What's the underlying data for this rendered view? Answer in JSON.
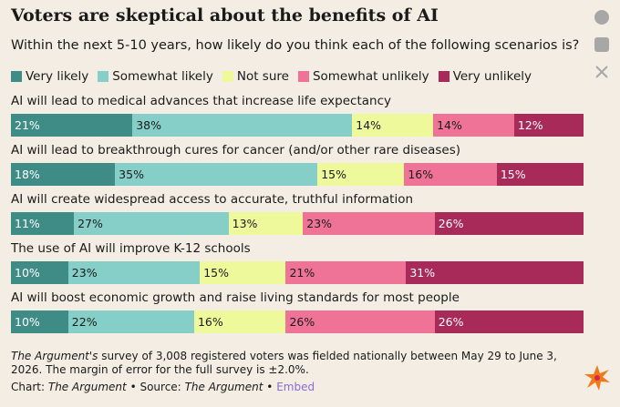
{
  "chart_data": {
    "type": "stacked-bar",
    "title": "Voters are skeptical about the benefits of AI",
    "subtitle": "Within the next 5-10 years, how likely do you think each of the following scenarios is?",
    "categories": [
      "AI will lead to medical advances that increase life expectancy",
      "AI will lead to breakthrough cures for cancer (and/or other rare diseases)",
      "AI will create widespread access to accurate, truthful information",
      "The use of AI will improve K-12 schools",
      "AI will boost economic growth and raise living standards for most people"
    ],
    "series": [
      {
        "name": "Very likely",
        "color": "#3f8c87",
        "values": [
          21,
          18,
          11,
          10,
          10
        ],
        "value_labels": [
          "21%",
          "18%",
          "11%",
          "10%",
          "10%"
        ]
      },
      {
        "name": "Somewhat likely",
        "color": "#86cfc8",
        "values": [
          38,
          35,
          27,
          23,
          22
        ],
        "value_labels": [
          "38%",
          "35%",
          "27%",
          "23%",
          "22%"
        ]
      },
      {
        "name": "Not sure",
        "color": "#eef99c",
        "values": [
          14,
          15,
          13,
          15,
          16
        ],
        "value_labels": [
          "14%",
          "15%",
          "13%",
          "15%",
          "16%"
        ]
      },
      {
        "name": "Somewhat unlikely",
        "color": "#ef7397",
        "values": [
          14,
          16,
          23,
          21,
          26
        ],
        "value_labels": [
          "14%",
          "16%",
          "23%",
          "21%",
          "26%"
        ]
      },
      {
        "name": "Very unlikely",
        "color": "#a72a58",
        "values": [
          12,
          15,
          26,
          31,
          26
        ],
        "value_labels": [
          "12%",
          "15%",
          "26%",
          "31%",
          "26%"
        ]
      }
    ],
    "footnote": [
      "The Argument's",
      " survey of 3,008 registered voters was fielded nationally between May 29 to June 3, 2026. The margin of error for the full survey is ±2.0%."
    ],
    "credits": [
      "Chart:",
      "The Argument",
      "• Source:",
      "The Argument",
      "•",
      "Embed"
    ]
  }
}
